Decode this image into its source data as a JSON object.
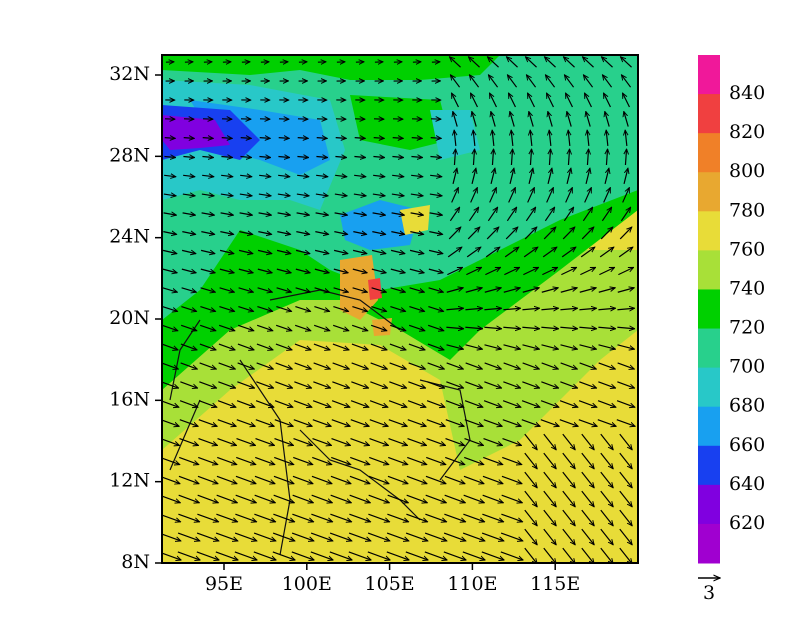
{
  "map": {
    "lat_ticks": [
      "32N",
      "28N",
      "24N",
      "20N",
      "16N",
      "12N",
      "8N"
    ],
    "lon_ticks": [
      "95E",
      "100E",
      "105E",
      "110E",
      "115E"
    ],
    "colorbar": {
      "labels": [
        840,
        820,
        800,
        780,
        760,
        740,
        720,
        700,
        680,
        660,
        640,
        620
      ],
      "colors": [
        "#f0189a",
        "#f04040",
        "#f08028",
        "#e8a830",
        "#e8dc38",
        "#a8e038",
        "#00d000",
        "#28d08c",
        "#28c8c8",
        "#18a0f0",
        "#1840f0",
        "#8000e0",
        "#a000d0"
      ]
    },
    "reference_vector": "3"
  }
}
